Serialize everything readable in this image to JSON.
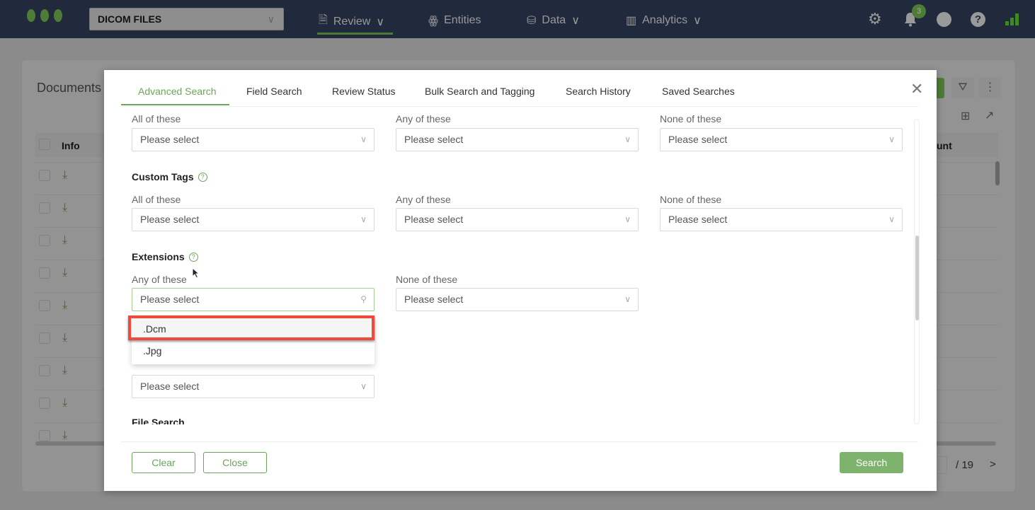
{
  "nav": {
    "project": "DICOM FILES",
    "items": [
      {
        "label": "Review",
        "icon": "document-icon"
      },
      {
        "label": "Entities",
        "icon": "entities-icon"
      },
      {
        "label": "Data",
        "icon": "database-icon"
      },
      {
        "label": "Analytics",
        "icon": "bar-chart-icon"
      }
    ],
    "notifications": "3"
  },
  "background": {
    "title": "Documents",
    "col_info": "Info",
    "col_count": "unt",
    "pagination_total": "/ 19"
  },
  "modal": {
    "tabs": [
      "Advanced Search",
      "Field Search",
      "Review Status",
      "Bulk Search and Tagging",
      "Search History",
      "Saved Searches"
    ],
    "section_top": {
      "labels": [
        "All of these",
        "Any of these",
        "None of these"
      ]
    },
    "custom_tags": {
      "title": "Custom Tags",
      "labels": [
        "All of these",
        "Any of these",
        "None of these"
      ]
    },
    "extensions": {
      "title": "Extensions",
      "labels": [
        "Any of these",
        "None of these"
      ],
      "options": [
        ".Dcm",
        ".Jpg"
      ]
    },
    "placeholder": "Please select",
    "file_search": "File Search",
    "buttons": {
      "clear": "Clear",
      "close": "Close",
      "search": "Search"
    }
  },
  "colors": {
    "accent": "#6aa55a",
    "highlight": "#ee4b3c",
    "nav": "#212a3c"
  }
}
